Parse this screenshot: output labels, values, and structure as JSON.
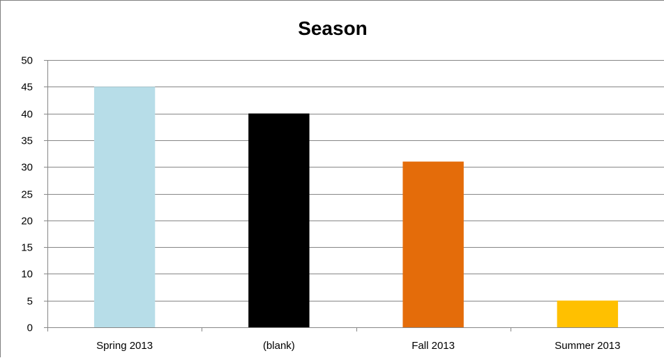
{
  "chart_data": {
    "type": "bar",
    "title": "Season",
    "categories": [
      "Spring 2013",
      "(blank)",
      "Fall 2013",
      "Summer 2013"
    ],
    "values": [
      45,
      40,
      31,
      5
    ],
    "colors": [
      "#b7dde8",
      "#000000",
      "#e46c0a",
      "#ffc000"
    ],
    "xlabel": "",
    "ylabel": "",
    "ylim": [
      0,
      50
    ],
    "yticks": [
      0,
      5,
      10,
      15,
      20,
      25,
      30,
      35,
      40,
      45,
      50
    ],
    "grid": true,
    "legend": "none"
  }
}
